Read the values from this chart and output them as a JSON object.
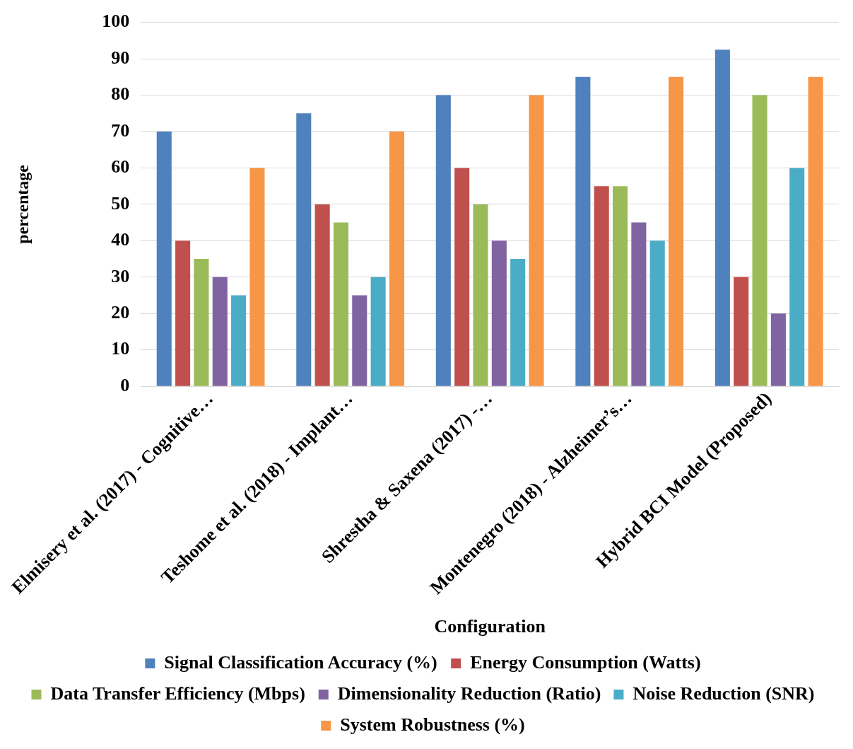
{
  "chart_data": {
    "type": "bar",
    "xlabel": "Configuration",
    "ylabel": "percentage",
    "categories": [
      "Elmisery et al. (2017) - Cognitive…",
      "Teshome et al. (2018) - Implant…",
      "Shrestha & Saxena (2017) -…",
      "Montenegro (2018) - Alzheimer’s…",
      "Hybrid BCI Model (Proposed)"
    ],
    "series": [
      {
        "name": "Signal Classification Accuracy (%)",
        "color": "#4f81bd",
        "values": [
          70,
          75,
          80,
          85,
          92.5
        ]
      },
      {
        "name": "Energy Consumption (Watts)",
        "color": "#c0504d",
        "values": [
          40,
          50,
          60,
          55,
          30
        ]
      },
      {
        "name": "Data Transfer Efficiency (Mbps)",
        "color": "#9bbb59",
        "values": [
          35,
          45,
          50,
          55,
          80
        ]
      },
      {
        "name": "Dimensionality Reduction (Ratio)",
        "color": "#8064a2",
        "values": [
          30,
          25,
          40,
          45,
          20
        ]
      },
      {
        "name": "Noise Reduction (SNR)",
        "color": "#4bacc6",
        "values": [
          25,
          30,
          35,
          40,
          60
        ]
      },
      {
        "name": "System Robustness (%)",
        "color": "#f79646",
        "values": [
          60,
          70,
          80,
          85,
          85
        ]
      }
    ],
    "ylim": [
      0,
      100
    ],
    "yticks": [
      0,
      10,
      20,
      30,
      40,
      50,
      60,
      70,
      80,
      90,
      100
    ],
    "grid": "y",
    "legend": "bottom"
  }
}
